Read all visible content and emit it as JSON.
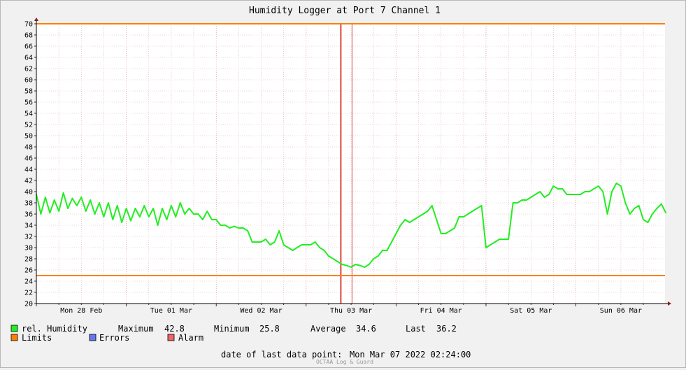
{
  "chart_data": {
    "type": "line",
    "title": "Humidity Logger at Port 7 Channel 1",
    "ylim": [
      20,
      70
    ],
    "y_ticks": [
      20,
      22,
      24,
      26,
      28,
      30,
      32,
      34,
      36,
      38,
      40,
      42,
      44,
      46,
      48,
      50,
      52,
      54,
      56,
      58,
      60,
      62,
      64,
      66,
      68,
      70
    ],
    "x_labels": [
      "Mon 28 Feb",
      "Tue 01 Mar",
      "Wed 02 Mar",
      "Thu 03 Mar",
      "Fri 04 Mar",
      "Sat 05 Mar",
      "Sun 06 Mar"
    ],
    "x_range_days": [
      0,
      7
    ],
    "limits": [
      70,
      25
    ],
    "alarm_days": [
      3.38,
      3.39,
      3.51
    ],
    "series": [
      {
        "name": "rel. Humidity",
        "x_days": [
          0,
          0.05,
          0.1,
          0.15,
          0.2,
          0.25,
          0.3,
          0.35,
          0.4,
          0.45,
          0.5,
          0.55,
          0.6,
          0.65,
          0.7,
          0.75,
          0.8,
          0.85,
          0.9,
          0.95,
          1.0,
          1.05,
          1.1,
          1.15,
          1.2,
          1.25,
          1.3,
          1.35,
          1.4,
          1.45,
          1.5,
          1.55,
          1.6,
          1.65,
          1.7,
          1.75,
          1.8,
          1.85,
          1.9,
          1.95,
          2.0,
          2.05,
          2.1,
          2.15,
          2.2,
          2.25,
          2.3,
          2.35,
          2.4,
          2.45,
          2.5,
          2.55,
          2.6,
          2.65,
          2.7,
          2.75,
          2.8,
          2.85,
          2.9,
          2.95,
          3.0,
          3.05,
          3.1,
          3.15,
          3.2,
          3.25,
          3.3,
          3.35,
          3.4,
          3.45,
          3.5,
          3.55,
          3.6,
          3.65,
          3.7,
          3.75,
          3.8,
          3.85,
          3.9,
          3.95,
          4.0,
          4.05,
          4.1,
          4.15,
          4.2,
          4.25,
          4.3,
          4.35,
          4.4,
          4.45,
          4.5,
          4.55,
          4.6,
          4.65,
          4.7,
          4.75,
          4.8,
          4.85,
          4.9,
          4.95,
          5.0,
          5.05,
          5.1,
          5.15,
          5.2,
          5.25,
          5.3,
          5.35,
          5.4,
          5.45,
          5.5,
          5.55,
          5.6,
          5.65,
          5.7,
          5.75,
          5.8,
          5.85,
          5.9,
          5.95,
          6.0,
          6.05,
          6.1,
          6.15,
          6.2,
          6.25,
          6.3,
          6.35,
          6.4,
          6.45,
          6.5,
          6.55,
          6.6,
          6.65,
          6.7,
          6.75,
          6.8,
          6.85,
          6.9,
          6.95,
          7.0
        ],
        "values": [
          39.5,
          36,
          39,
          36.2,
          38.5,
          36.5,
          39.8,
          37,
          38.8,
          37.5,
          39,
          36.5,
          38.5,
          36,
          38,
          35.5,
          38,
          35,
          37.5,
          34.5,
          37,
          34.8,
          37,
          35.5,
          37.5,
          35.5,
          37,
          34,
          37,
          35,
          37.5,
          35.5,
          38,
          36,
          37,
          36,
          36,
          35,
          36.5,
          35,
          35,
          34,
          34,
          33.5,
          33.8,
          33.5,
          33.5,
          33,
          31,
          31,
          31,
          31.5,
          30.5,
          31,
          33,
          30.5,
          30,
          29.5,
          30,
          30.5,
          30.5,
          30.5,
          31,
          30,
          29.5,
          28.5,
          28,
          27.5,
          27,
          26.8,
          26.5,
          27,
          26.8,
          26.5,
          27,
          28,
          28.5,
          29.5,
          29.5,
          31,
          32.5,
          34,
          35,
          34.5,
          35,
          35.5,
          36,
          36.5,
          37.5,
          35,
          32.5,
          32.5,
          33,
          33.5,
          35.5,
          35.5,
          36,
          36.5,
          37,
          37.5,
          30,
          30.5,
          31,
          31.5,
          31.5,
          31.5,
          38,
          38,
          38.5,
          38.5,
          39,
          39.5,
          40,
          39,
          39.5,
          41,
          40.5,
          40.5,
          39.5,
          39.5,
          39.5,
          39.5,
          40,
          40,
          40.5,
          41,
          40,
          36,
          40,
          41.5,
          41,
          38,
          36,
          37,
          37.5,
          35,
          34.5,
          36,
          37,
          37.8,
          36.2
        ]
      }
    ]
  },
  "legend": {
    "humidity_label": "rel. Humidity",
    "maximum_label": "Maximum",
    "maximum_value": "42.8",
    "minimum_label": "Minimum",
    "minimum_value": "25.8",
    "average_label": "Average",
    "average_value": "34.6",
    "last_label": "Last",
    "last_value": "36.2",
    "limits_label": "Limits",
    "errors_label": "Errors",
    "alarm_label": "Alarm",
    "last_point_label": "date of last data point:",
    "last_point_value": "Mon Mar 07 2022 02:24:00",
    "footer": "OCTAA Log & Guard"
  },
  "colors": {
    "humidity": "#22ee22",
    "limits": "#ff7f00",
    "errors": "#6677ee",
    "alarm": "#ee6666",
    "grid": "#e0b0b0",
    "axis_arrow": "#8b1a1a"
  }
}
